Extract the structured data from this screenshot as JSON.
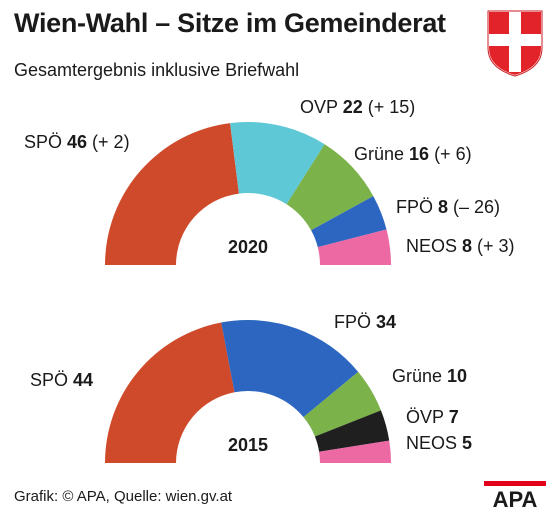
{
  "title": "Wien-Wahl – Sitze im Gemeinderat",
  "subtitle": "Gesamtergebnis inklusive Briefwahl",
  "footer": "Grafik: © APA, Quelle: wien.gv.at",
  "logo_text": "APA",
  "colors": {
    "SPÖ": "#cf4a2b",
    "ÖVP": "#5fc8d6",
    "Grüne": "#7bb24a",
    "FPÖ": "#2d66c0",
    "NEOS": "#ec69a4",
    "ÖVP_2015": "#1f1f1f",
    "crest_red": "#e3232a",
    "logo_red": "#e3001b"
  },
  "chart_data": [
    {
      "type": "pie",
      "title": "2020",
      "categories": [
        "SPÖ",
        "ÖVP",
        "Grüne",
        "FPÖ",
        "NEOS"
      ],
      "values": [
        46,
        22,
        16,
        8,
        8
      ],
      "changes": [
        "+ 2",
        "+ 15",
        "+ 6",
        "– 26",
        "+ 3"
      ]
    },
    {
      "type": "pie",
      "title": "2015",
      "categories": [
        "SPÖ",
        "FPÖ",
        "Grüne",
        "ÖVP",
        "NEOS"
      ],
      "values": [
        44,
        34,
        10,
        7,
        5
      ]
    }
  ]
}
